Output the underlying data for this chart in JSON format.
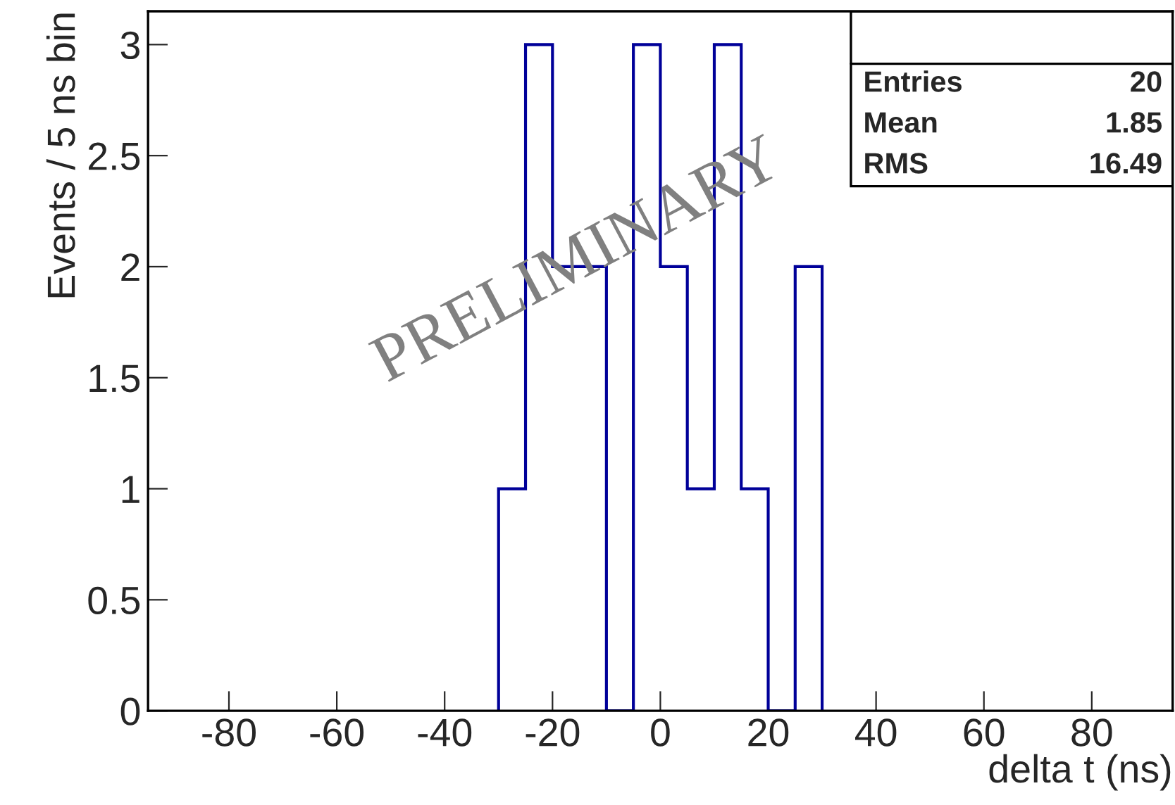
{
  "chart_data": {
    "type": "histogram",
    "xlabel": "delta t (ns)",
    "ylabel": "Events / 5 ns bin",
    "bins": [
      -30,
      -25,
      -20,
      -15,
      -10,
      -5,
      0,
      5,
      10,
      15,
      20,
      25,
      30
    ],
    "values": [
      1,
      3,
      2,
      2,
      0,
      3,
      2,
      1,
      3,
      1,
      0,
      2
    ],
    "color": "#000099",
    "xlim": [
      -95,
      95
    ],
    "xticks": [
      -80,
      -60,
      -40,
      -20,
      0,
      20,
      40,
      60,
      80
    ],
    "ylim": [
      0,
      3.15
    ],
    "yticks": [
      0,
      0.5,
      1,
      1.5,
      2,
      2.5,
      3
    ],
    "grid": false,
    "annotations": [
      "PRELIMINARY",
      "Entries",
      "20",
      "Mean",
      "1.85",
      "RMS",
      "16.49"
    ]
  }
}
